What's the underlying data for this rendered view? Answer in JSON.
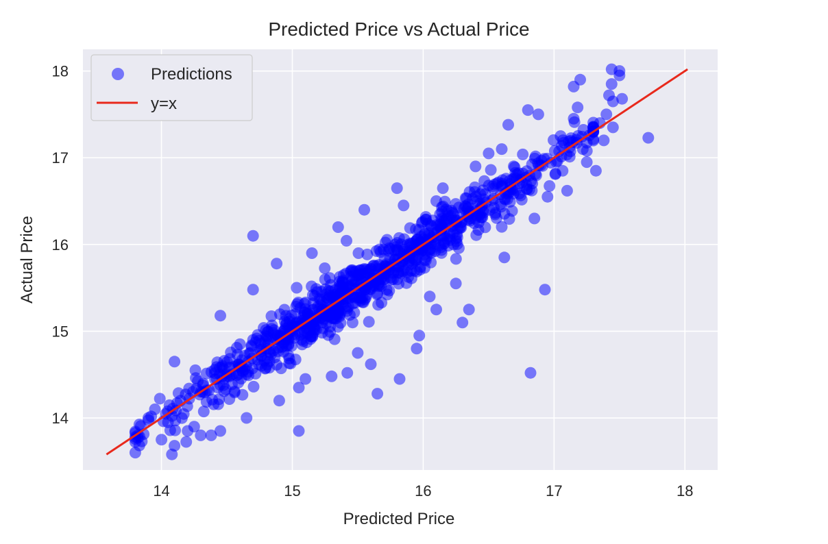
{
  "colors": {
    "background": "#eaeaf2",
    "grid": "#ffffff",
    "points": "#0000ff",
    "line": "#e8291c",
    "text": "#262626"
  },
  "chart_data": {
    "type": "scatter",
    "title": "Predicted Price vs Actual Price",
    "xlabel": "Predicted Price",
    "ylabel": "Actual Price",
    "xlim": [
      13.4,
      18.25
    ],
    "ylim": [
      13.4,
      18.25
    ],
    "xticks": [
      14,
      15,
      16,
      17,
      18
    ],
    "yticks": [
      14,
      15,
      16,
      17,
      18
    ],
    "grid": true,
    "legend_position": "top-left",
    "legend": [
      {
        "label": "Predictions",
        "marker": "circle"
      },
      {
        "label": "y=x",
        "marker": "line"
      }
    ],
    "series": [
      {
        "name": "Predictions",
        "kind": "scatter",
        "alpha": 0.5,
        "band": {
          "x_from": 13.8,
          "x_to": 17.3,
          "spread": 0.17
        },
        "points": [
          [
            13.82,
            13.8
          ],
          [
            13.85,
            13.73
          ],
          [
            13.9,
            14.0
          ],
          [
            13.95,
            14.1
          ],
          [
            14.0,
            13.75
          ],
          [
            14.05,
            13.95
          ],
          [
            14.08,
            13.58
          ],
          [
            14.1,
            14.65
          ],
          [
            14.1,
            13.68
          ],
          [
            14.2,
            13.85
          ],
          [
            14.25,
            13.9
          ],
          [
            14.3,
            13.8
          ],
          [
            14.38,
            13.8
          ],
          [
            14.45,
            13.85
          ],
          [
            14.65,
            14.0
          ],
          [
            14.6,
            14.85
          ],
          [
            14.7,
            14.9
          ],
          [
            14.45,
            15.18
          ],
          [
            14.7,
            15.48
          ],
          [
            14.7,
            16.1
          ],
          [
            14.88,
            15.78
          ],
          [
            14.9,
            14.2
          ],
          [
            15.05,
            14.35
          ],
          [
            15.05,
            13.85
          ],
          [
            15.1,
            14.45
          ],
          [
            15.15,
            15.9
          ],
          [
            15.3,
            14.48
          ],
          [
            15.35,
            16.2
          ],
          [
            15.42,
            14.52
          ],
          [
            15.5,
            14.75
          ],
          [
            15.55,
            16.4
          ],
          [
            15.6,
            14.62
          ],
          [
            15.65,
            14.28
          ],
          [
            15.82,
            14.45
          ],
          [
            15.85,
            16.45
          ],
          [
            15.8,
            16.65
          ],
          [
            15.95,
            14.8
          ],
          [
            15.97,
            14.95
          ],
          [
            16.05,
            15.4
          ],
          [
            16.1,
            16.5
          ],
          [
            16.15,
            16.65
          ],
          [
            16.1,
            15.25
          ],
          [
            16.25,
            15.55
          ],
          [
            16.3,
            15.1
          ],
          [
            16.35,
            15.25
          ],
          [
            16.4,
            16.9
          ],
          [
            16.5,
            17.05
          ],
          [
            16.62,
            15.85
          ],
          [
            16.6,
            17.1
          ],
          [
            16.65,
            17.38
          ],
          [
            16.8,
            17.55
          ],
          [
            16.88,
            17.5
          ],
          [
            16.82,
            14.52
          ],
          [
            16.85,
            16.3
          ],
          [
            16.93,
            15.48
          ],
          [
            16.95,
            16.55
          ],
          [
            17.05,
            17.25
          ],
          [
            17.1,
            16.62
          ],
          [
            17.15,
            17.45
          ],
          [
            17.15,
            17.82
          ],
          [
            17.2,
            17.9
          ],
          [
            17.18,
            17.58
          ],
          [
            17.22,
            17.1
          ],
          [
            17.25,
            16.95
          ],
          [
            17.3,
            17.3
          ],
          [
            17.32,
            16.85
          ],
          [
            17.35,
            17.4
          ],
          [
            17.38,
            17.2
          ],
          [
            17.4,
            17.5
          ],
          [
            17.42,
            17.72
          ],
          [
            17.44,
            18.02
          ],
          [
            17.44,
            17.85
          ],
          [
            17.45,
            17.65
          ],
          [
            17.45,
            17.35
          ],
          [
            17.5,
            17.95
          ],
          [
            17.52,
            17.68
          ],
          [
            17.5,
            18.0
          ],
          [
            17.72,
            17.23
          ]
        ]
      },
      {
        "name": "y=x",
        "kind": "line",
        "x": [
          13.58,
          18.02
        ],
        "y": [
          13.58,
          18.02
        ]
      }
    ]
  }
}
